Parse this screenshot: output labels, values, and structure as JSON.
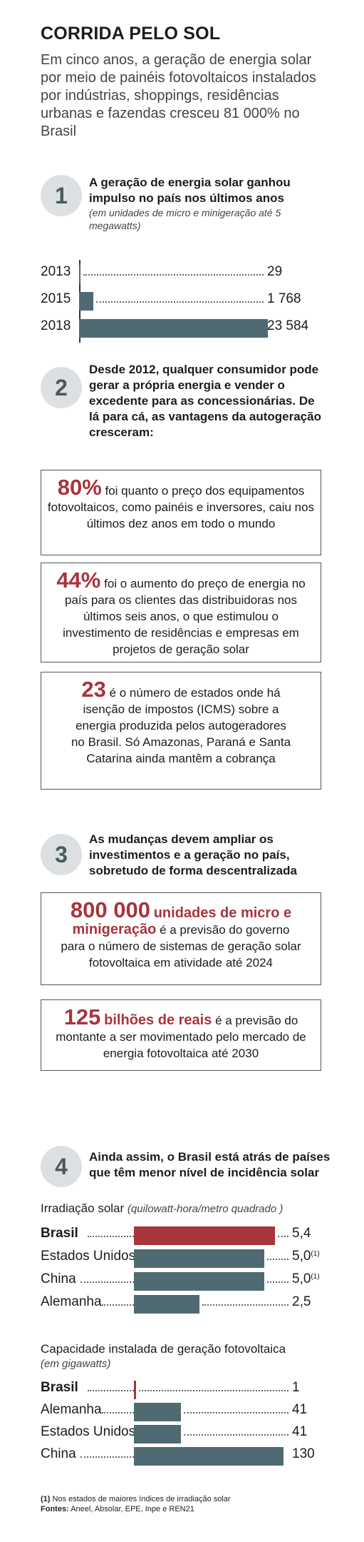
{
  "title": "CORRIDA PELO SOL",
  "subtitle": "Em cinco anos, a geração de energia solar por meio de painéis fotovoltaicos instalados por indústrias, shoppings, residências urbanas e fazendas cresceu 81 000% no Brasil",
  "section1": {
    "number": "1",
    "heading": "A  geração de energia solar ganhou impulso no país nos últimos anos",
    "note": "(em unidades de micro e minigeração até 5 megawatts)"
  },
  "section2": {
    "number": "2",
    "heading": "Desde 2012, qualquer consumidor pode gerar a própria energia e vender o excedente para as concessionárias. De lá para cá, as vantagens da autogeração cresceram:",
    "box1": {
      "big": "80%",
      "text": "foi quanto o preço dos equipamentos fotovoltaicos, como painéis e inversores, caiu nos últimos dez anos em todo o mundo"
    },
    "box2": {
      "big": "44%",
      "text": "foi o aumento do preço de energia no país para os clientes das distribuidoras nos últimos seis anos, o que estimulou o investimento de residências e empresas em projetos de geração solar"
    },
    "box3": {
      "big": "23",
      "text": "é o número de estados onde há isenção de impostos (ICMS) sobre a energia produzida pelos autogeradores no Brasil. Só Amazonas, Paraná e Santa Catarina ainda mantêm a cobrança"
    }
  },
  "section3": {
    "number": "3",
    "heading": "As mudanças devem ampliar os investimentos e a geração no país, sobretudo de forma descentralizada",
    "box1": {
      "big": "800 000",
      "red": "unidades de micro e minigeração",
      "text": "é a previsão do governo para o número de sistemas de geração solar fotovoltaica em atividade até 2024"
    },
    "box2": {
      "big": "125",
      "red": "bilhões de reais",
      "text": "é a previsão do montante a ser movimentado pelo mercado de energia fotovoltaica até 2030"
    }
  },
  "section4": {
    "number": "4",
    "heading": "Ainda assim, o Brasil está atrás de países que têm menor nível de incidência solar",
    "irr_title": "Irradiação solar",
    "irr_unit": "(quilowatt-hora/metro quadrado )",
    "cap_title": "Capacidade instalada de geração fotovoltaica",
    "cap_unit": "(em gigawatts)"
  },
  "footnote": {
    "note_marker": "(1)",
    "note_text": "Nos estados de maiores índices de irradiação solar",
    "sources_label": "Fontes:",
    "sources_text": "Aneel, Absolar, EPE, Inpe e REN21"
  },
  "colors": {
    "accent": "#a8343c",
    "bar": "#4f6a73",
    "circle": "#dde0e2"
  },
  "chart_data": [
    {
      "type": "bar",
      "orientation": "horizontal",
      "categories": [
        "2013",
        "2015",
        "2018"
      ],
      "values": [
        29,
        1768,
        23584
      ],
      "value_labels": [
        "29",
        "1 768",
        "23 584"
      ],
      "title": "",
      "xlabel": "",
      "ylabel": ""
    },
    {
      "type": "bar",
      "orientation": "horizontal",
      "title": "Irradiação solar",
      "unit": "(quilowatt-hora/metro quadrado )",
      "categories": [
        "Brasil",
        "Estados Unidos",
        "China",
        "Alemanha"
      ],
      "values": [
        5.4,
        5.0,
        5.0,
        2.5
      ],
      "value_labels": [
        "5,4",
        "5,0",
        "5,0",
        "2,5"
      ],
      "value_notes": [
        "",
        "(1)",
        "(1)",
        ""
      ],
      "highlight": "Brasil"
    },
    {
      "type": "bar",
      "orientation": "horizontal",
      "title": "Capacidade instalada de geração fotovoltaica",
      "unit": "(em gigawatts)",
      "categories": [
        "Brasil",
        "Alemanha",
        "Estados Unidos",
        "China"
      ],
      "values": [
        1,
        41,
        41,
        130
      ],
      "value_labels": [
        "1",
        "41",
        "41",
        "130"
      ],
      "highlight": "Brasil"
    }
  ]
}
